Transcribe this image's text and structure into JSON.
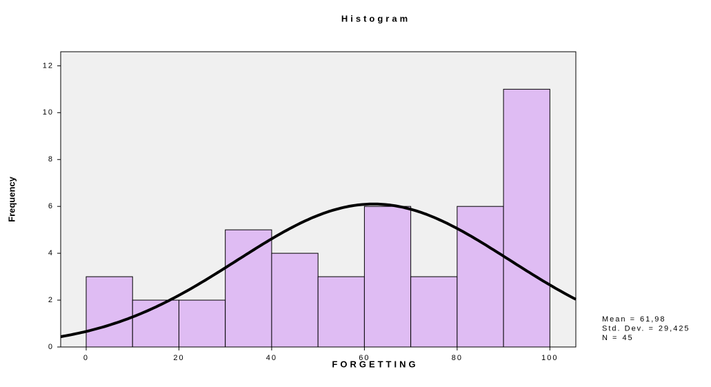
{
  "chart_data": {
    "type": "histogram",
    "title": "Histogram",
    "x_label": "FORGETTING",
    "y_label": "Frequency",
    "bins": [
      0,
      10,
      20,
      30,
      40,
      50,
      60,
      70,
      80,
      90,
      100
    ],
    "counts": [
      3,
      2,
      2,
      5,
      4,
      3,
      6,
      3,
      6,
      11
    ],
    "color": "#dfbcf3",
    "xlim": [
      -5.5,
      105.6
    ],
    "ylim": [
      0,
      12.6
    ],
    "xticks": [
      0,
      20,
      40,
      60,
      80,
      100
    ],
    "yticks": [
      0,
      2,
      4,
      6,
      8,
      10,
      12
    ],
    "normal_curve": true,
    "stats": [
      {
        "name": "Mean =",
        "value": 61.98,
        "label": "61,98"
      },
      {
        "name": "Std. Dev. =",
        "value": 29.425,
        "label": "29,425"
      },
      {
        "name": "N =",
        "value": 45,
        "label": "45"
      }
    ]
  }
}
